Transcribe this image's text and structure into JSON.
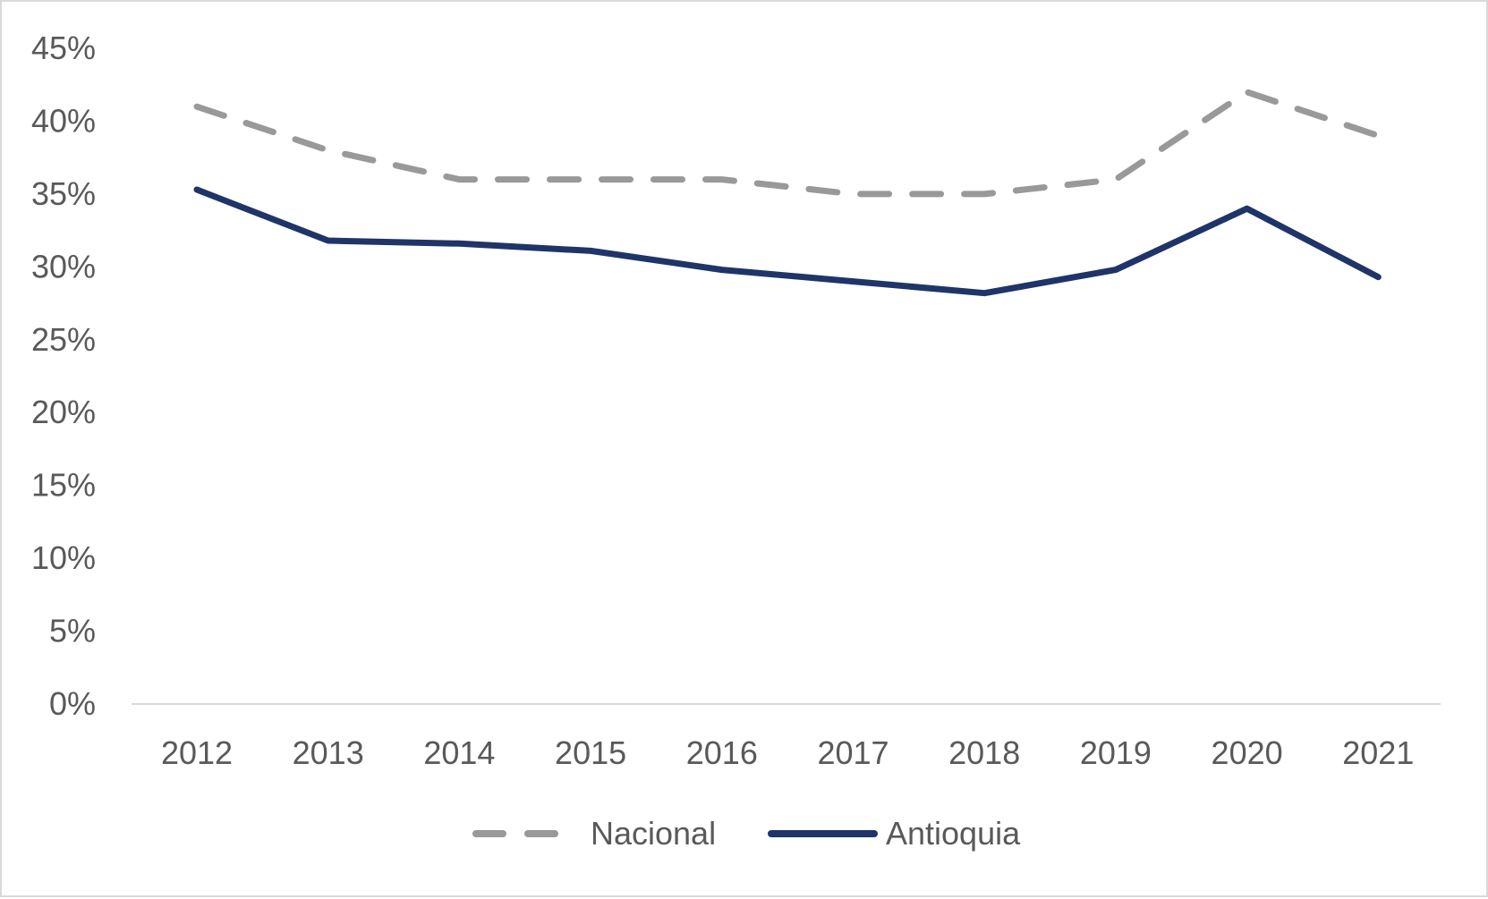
{
  "chart_data": {
    "type": "line",
    "categories": [
      "2012",
      "2013",
      "2014",
      "2015",
      "2016",
      "2017",
      "2018",
      "2019",
      "2020",
      "2021"
    ],
    "series": [
      {
        "name": "Nacional",
        "values": [
          41.0,
          38.0,
          36.0,
          36.0,
          36.0,
          35.0,
          35.0,
          36.0,
          42.0,
          39.0
        ],
        "color": "#999999",
        "style": "dashed"
      },
      {
        "name": "Antioquia",
        "values": [
          35.3,
          31.8,
          31.6,
          31.1,
          29.8,
          29.0,
          28.2,
          29.8,
          34.0,
          29.3
        ],
        "color": "#1f3468",
        "style": "solid"
      }
    ],
    "ylim": [
      0,
      45
    ],
    "yticks": [
      "0%",
      "5%",
      "10%",
      "15%",
      "20%",
      "25%",
      "30%",
      "35%",
      "40%",
      "45%"
    ],
    "ytick_values": [
      0,
      5,
      10,
      15,
      20,
      25,
      30,
      35,
      40,
      45
    ],
    "grid": false,
    "legend_position": "bottom",
    "title": "",
    "xlabel": "",
    "ylabel": ""
  }
}
